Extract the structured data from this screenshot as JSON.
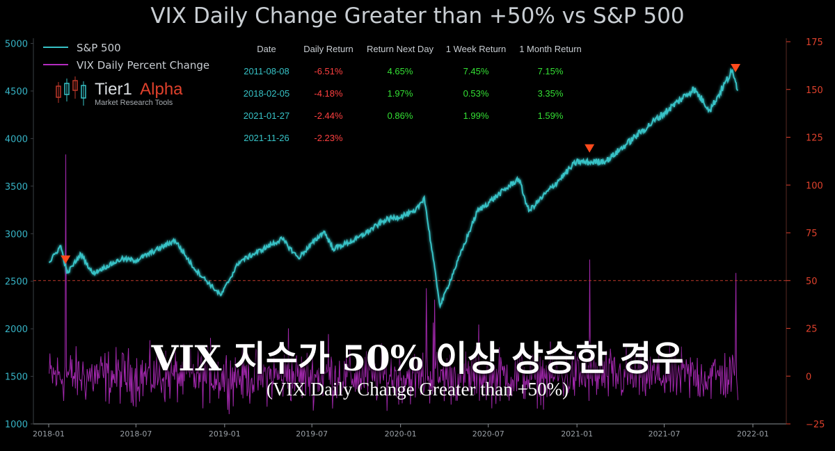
{
  "title": "VIX Daily Change Greater than +50% vs S&P 500",
  "legend": [
    {
      "label": "S&P 500",
      "color": "#37c3c7"
    },
    {
      "label": "VIX Daily Percent Change",
      "color": "#b42cc0"
    }
  ],
  "brand": {
    "name_a": "Tier1",
    "name_b": "Alpha",
    "tagline": "Market  Research Tools"
  },
  "table": {
    "headers": [
      "Date",
      "Daily Return",
      "Return Next Day",
      "1 Week Return",
      "1 Month Return"
    ],
    "rows": [
      [
        "2011-08-08",
        "-6.51%",
        "4.65%",
        "7.45%",
        "7.15%"
      ],
      [
        "2018-02-05",
        "-4.18%",
        "1.97%",
        "0.53%",
        "3.35%"
      ],
      [
        "2021-01-27",
        "-2.44%",
        "0.86%",
        "1.99%",
        "1.59%"
      ],
      [
        "2021-11-26",
        "-2.23%",
        "",
        "",
        ""
      ]
    ]
  },
  "overlay": {
    "main": "VIX 지수가 50% 이상 상승한 경우",
    "sub": "(VIX Daily Change Greater than +50%)"
  },
  "colors": {
    "spx": "#37c3c7",
    "vix": "#b42cc0",
    "marker": "#ff4a1c",
    "left_axis": "#37b4c6",
    "right_axis": "#e0412c",
    "date_axis": "#9aa0a6",
    "threshold": "#c0392b",
    "neg": "#ff4040",
    "pos": "#34e034"
  },
  "chart_data": {
    "type": "line",
    "title": "VIX Daily Change Greater than +50% vs S&P 500",
    "x_range": [
      "2018-01-01",
      "2022-01-15"
    ],
    "x_ticks": [
      "2018-01",
      "2018-07",
      "2019-01",
      "2019-07",
      "2020-01",
      "2020-07",
      "2021-01",
      "2021-07",
      "2022-01"
    ],
    "y_left": {
      "ylim": [
        1000,
        5150
      ],
      "ticks": [
        1000,
        1500,
        2000,
        2500,
        3000,
        3500,
        4000,
        4500,
        5000
      ]
    },
    "y_right": {
      "ylim": [
        -25,
        175
      ],
      "ticks": [
        -25,
        0,
        25,
        50,
        75,
        100,
        125,
        150,
        175
      ]
    },
    "threshold": 50,
    "series": [
      {
        "name": "S&P 500",
        "axis": "left",
        "x": [
          "2018-01-02",
          "2018-01-26",
          "2018-02-08",
          "2018-03-09",
          "2018-04-02",
          "2018-06-01",
          "2018-07-01",
          "2018-09-20",
          "2018-10-29",
          "2018-12-24",
          "2019-01-31",
          "2019-04-30",
          "2019-06-03",
          "2019-07-26",
          "2019-08-14",
          "2019-10-01",
          "2019-11-29",
          "2020-01-31",
          "2020-02-19",
          "2020-03-23",
          "2020-06-08",
          "2020-09-02",
          "2020-09-23",
          "2020-12-31",
          "2021-01-27",
          "2021-03-04",
          "2021-05-12",
          "2021-08-31",
          "2021-10-04",
          "2021-11-18",
          "2021-11-26",
          "2021-12-01"
        ],
        "y": [
          2695,
          2873,
          2581,
          2787,
          2582,
          2734,
          2718,
          2931,
          2641,
          2351,
          2704,
          2945,
          2744,
          3026,
          2840,
          2941,
          3141,
          3225,
          3386,
          2237,
          3232,
          3580,
          3237,
          3756,
          3750,
          3768,
          4063,
          4523,
          4300,
          4704,
          4595,
          4513
        ]
      },
      {
        "name": "VIX Daily Percent Change",
        "axis": "right",
        "spikes": [
          {
            "x": "2018-02-05",
            "y": 116
          },
          {
            "x": "2018-12-03",
            "y": 20
          },
          {
            "x": "2019-05-13",
            "y": 25
          },
          {
            "x": "2019-08-05",
            "y": 22
          },
          {
            "x": "2020-02-24",
            "y": 46
          },
          {
            "x": "2020-03-09",
            "y": 28
          },
          {
            "x": "2020-03-12",
            "y": 40
          },
          {
            "x": "2020-06-11",
            "y": 27
          },
          {
            "x": "2021-01-27",
            "y": 61
          },
          {
            "x": "2021-11-26",
            "y": 54
          }
        ]
      }
    ],
    "markers": [
      "2018-02-05",
      "2021-01-27",
      "2021-11-26"
    ]
  }
}
